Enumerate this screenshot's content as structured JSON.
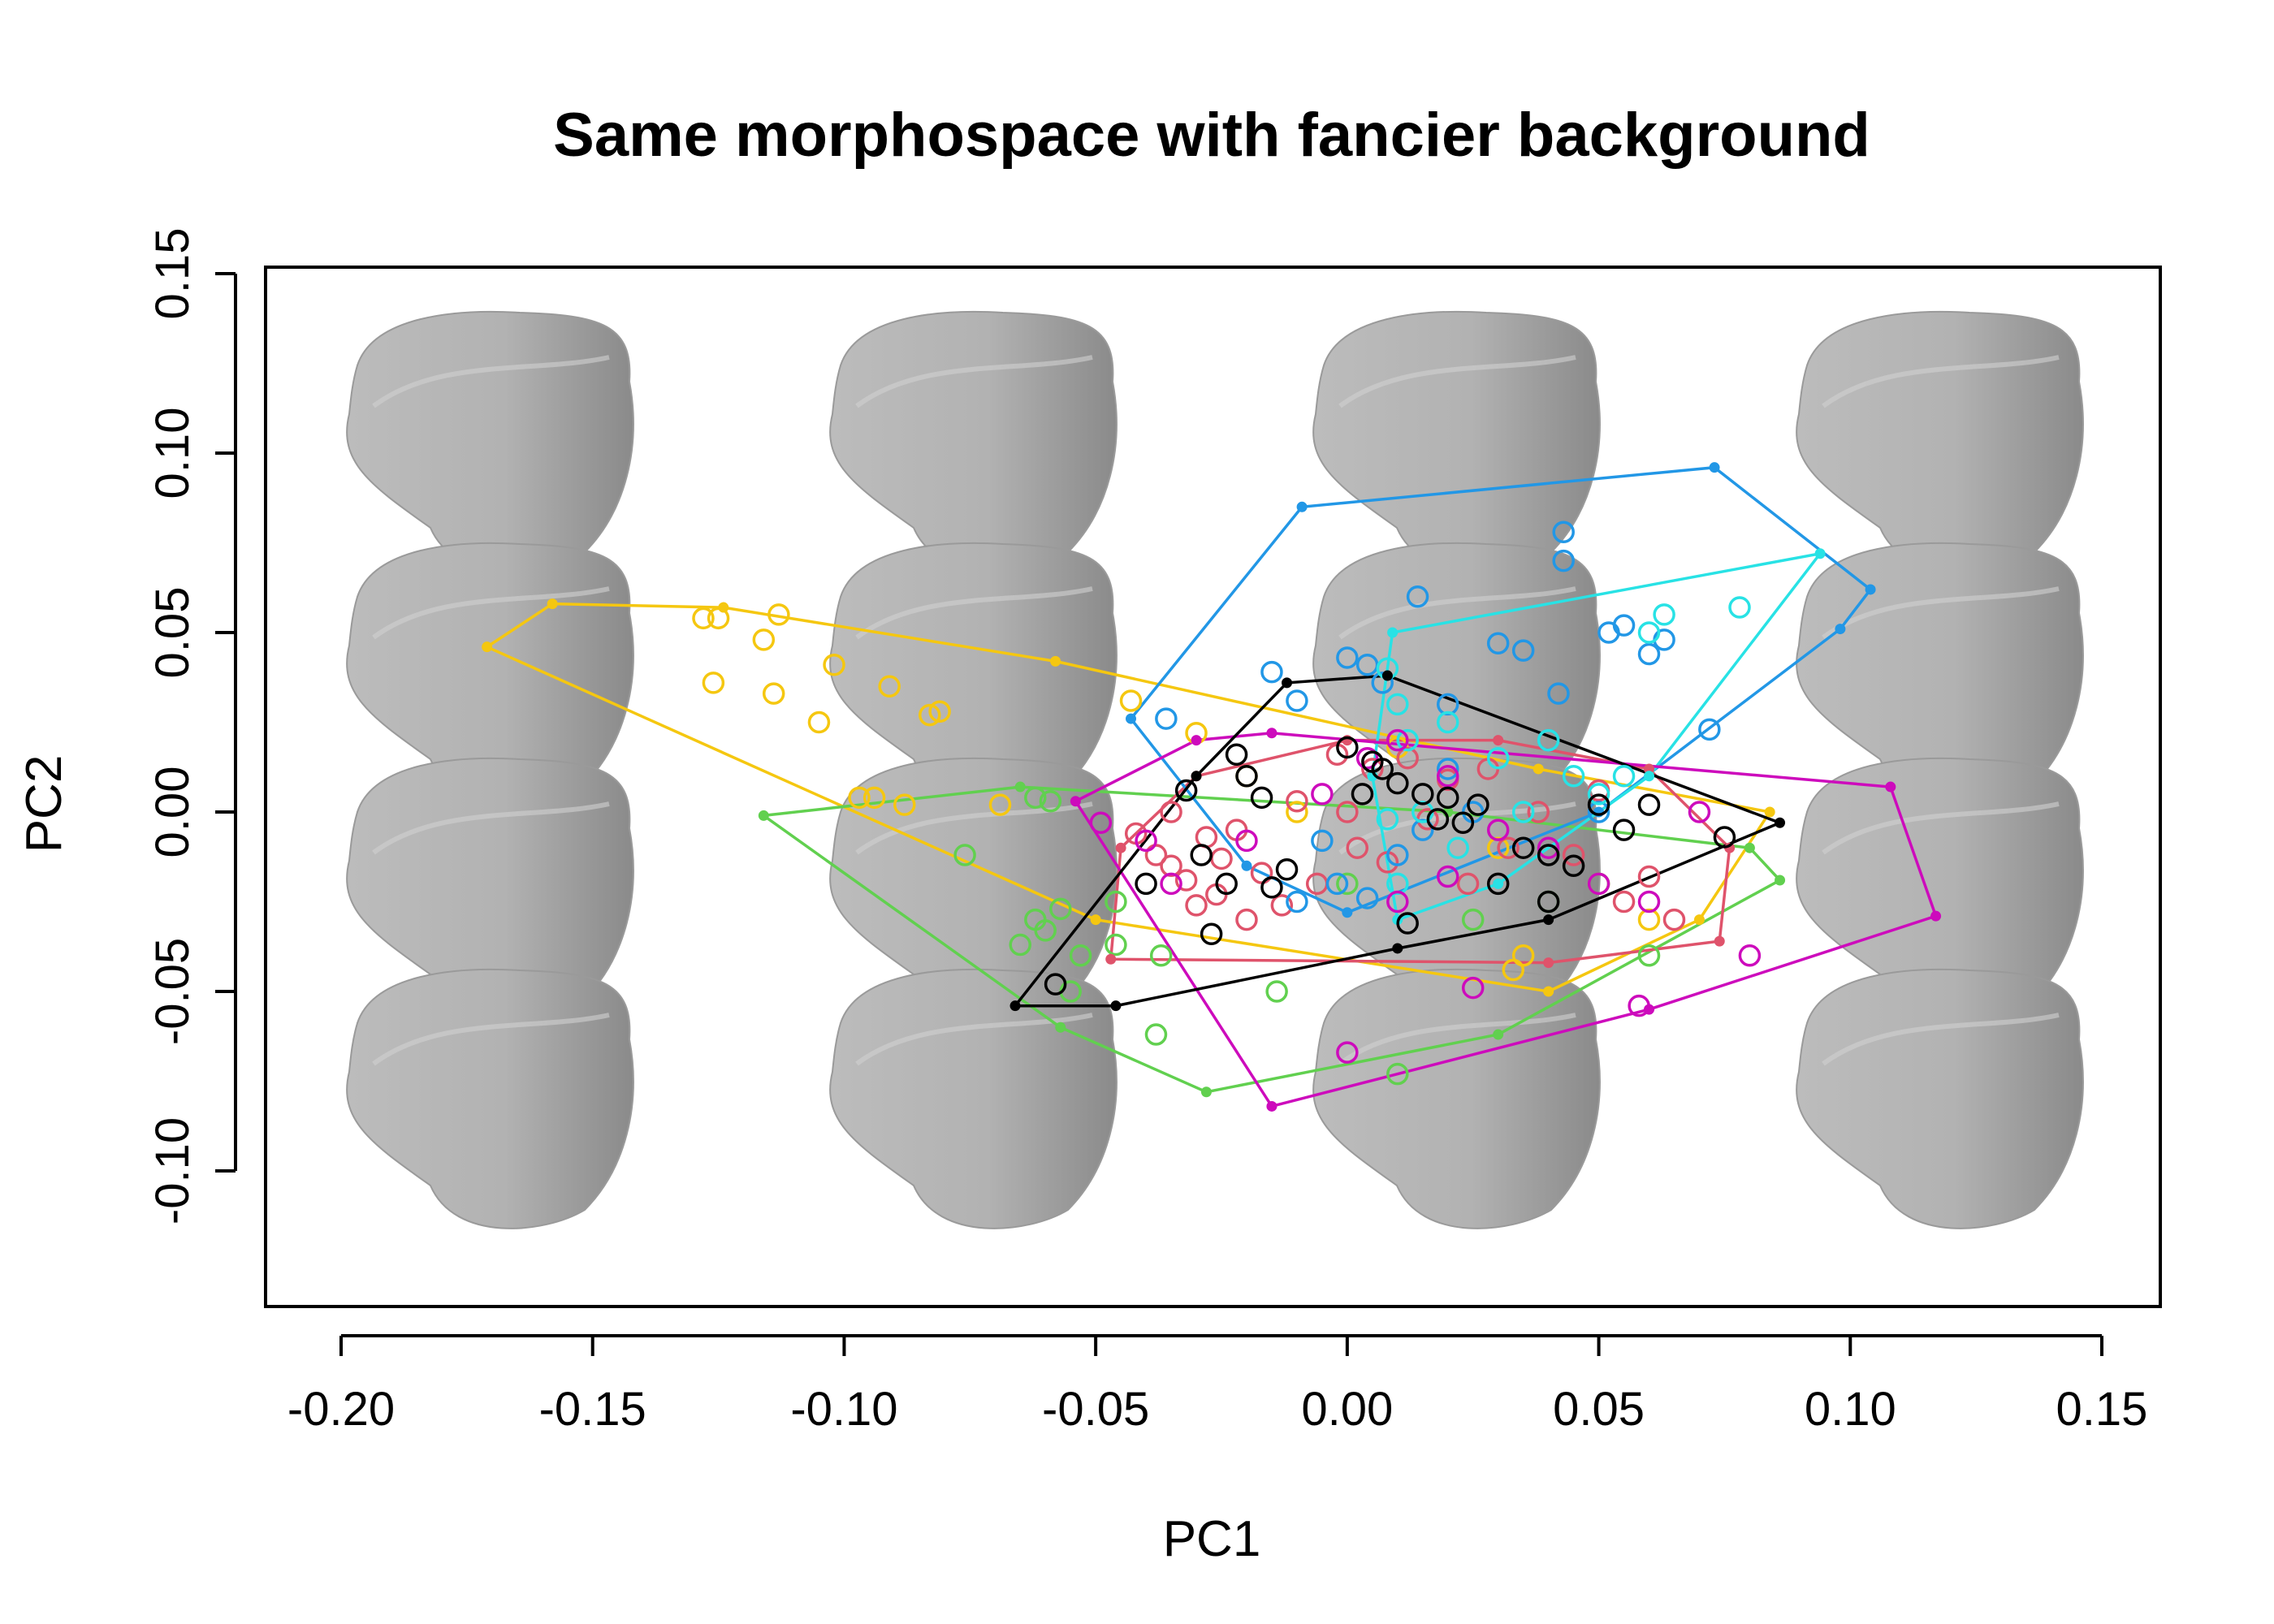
{
  "chart_data": {
    "type": "scatter",
    "title": "Same morphospace with fancier background",
    "xlabel": "PC1",
    "ylabel": "PC2",
    "xlim": [
      -0.215,
      0.16
    ],
    "ylim": [
      -0.138,
      0.151
    ],
    "x_ticks": [
      "-0.20",
      "-0.15",
      "-0.10",
      "-0.05",
      "0.00",
      "0.05",
      "0.10",
      "0.15"
    ],
    "y_ticks": [
      "-0.10",
      "-0.05",
      "0.00",
      "0.05",
      "0.10",
      "0.15"
    ],
    "background": "tooth shape grid (4 columns x 4 rows)",
    "background_colors": {
      "tooth_fill": "#b4b4b4",
      "tooth_shade": "#8c8c8c"
    },
    "series": [
      {
        "color": "#F5C710",
        "hull": [
          [
            -0.171,
            0.046
          ],
          [
            -0.158,
            0.058
          ],
          [
            -0.124,
            0.057
          ],
          [
            -0.058,
            0.042
          ],
          [
            0.038,
            0.012
          ],
          [
            0.084,
            0.0
          ],
          [
            0.07,
            -0.03
          ],
          [
            0.04,
            -0.05
          ],
          [
            -0.05,
            -0.03
          ],
          [
            -0.171,
            0.046
          ]
        ],
        "points": [
          [
            -0.128,
            0.054
          ],
          [
            -0.125,
            0.054
          ],
          [
            -0.116,
            0.048
          ],
          [
            -0.113,
            0.055
          ],
          [
            -0.102,
            0.041
          ],
          [
            -0.126,
            0.036
          ],
          [
            -0.114,
            0.033
          ],
          [
            -0.105,
            0.025
          ],
          [
            -0.091,
            0.035
          ],
          [
            -0.083,
            0.027
          ],
          [
            -0.081,
            0.028
          ],
          [
            -0.097,
            0.004
          ],
          [
            -0.094,
            0.004
          ],
          [
            -0.088,
            0.002
          ],
          [
            -0.069,
            0.002
          ],
          [
            -0.043,
            0.031
          ],
          [
            -0.03,
            0.022
          ],
          [
            -0.02,
            0.01
          ],
          [
            -0.01,
            0.0
          ],
          [
            0.01,
            0.018
          ],
          [
            0.03,
            -0.01
          ],
          [
            0.05,
            -0.02
          ],
          [
            0.06,
            -0.03
          ],
          [
            0.033,
            -0.044
          ],
          [
            0.035,
            -0.04
          ]
        ]
      },
      {
        "color": "#61D04F",
        "hull": [
          [
            -0.116,
            -0.001
          ],
          [
            -0.065,
            0.007
          ],
          [
            0.02,
            0.0
          ],
          [
            0.08,
            -0.01
          ],
          [
            0.086,
            -0.019
          ],
          [
            0.03,
            -0.062
          ],
          [
            -0.028,
            -0.078
          ],
          [
            -0.057,
            -0.06
          ],
          [
            -0.116,
            -0.001
          ]
        ],
        "points": [
          [
            -0.076,
            -0.012
          ],
          [
            -0.062,
            0.004
          ],
          [
            -0.059,
            0.003
          ],
          [
            -0.065,
            -0.037
          ],
          [
            -0.062,
            -0.03
          ],
          [
            -0.06,
            -0.033
          ],
          [
            -0.057,
            -0.027
          ],
          [
            -0.053,
            -0.04
          ],
          [
            -0.055,
            -0.05
          ],
          [
            -0.046,
            -0.025
          ],
          [
            -0.046,
            -0.037
          ],
          [
            -0.037,
            -0.04
          ],
          [
            -0.038,
            -0.062
          ],
          [
            -0.014,
            -0.05
          ],
          [
            0.0,
            -0.02
          ],
          [
            0.01,
            -0.073
          ],
          [
            0.025,
            -0.03
          ],
          [
            0.04,
            -0.025
          ],
          [
            0.05,
            -0.02
          ],
          [
            0.06,
            -0.04
          ]
        ]
      },
      {
        "color": "#DF536B",
        "hull": [
          [
            -0.045,
            -0.01
          ],
          [
            -0.03,
            0.01
          ],
          [
            0.0,
            0.02
          ],
          [
            0.03,
            0.02
          ],
          [
            0.06,
            0.012
          ],
          [
            0.076,
            -0.01
          ],
          [
            0.074,
            -0.036
          ],
          [
            0.04,
            -0.042
          ],
          [
            -0.047,
            -0.041
          ],
          [
            -0.045,
            -0.01
          ]
        ],
        "points": [
          [
            -0.042,
            -0.006
          ],
          [
            -0.038,
            -0.012
          ],
          [
            -0.035,
            0.0
          ],
          [
            -0.032,
            -0.019
          ],
          [
            -0.028,
            -0.007
          ],
          [
            -0.025,
            -0.013
          ],
          [
            -0.022,
            -0.005
          ],
          [
            -0.017,
            -0.017
          ],
          [
            -0.013,
            -0.026
          ],
          [
            -0.01,
            0.003
          ],
          [
            -0.006,
            -0.02
          ],
          [
            -0.002,
            0.016
          ],
          [
            0.002,
            -0.01
          ],
          [
            0.005,
            0.012
          ],
          [
            0.008,
            -0.014
          ],
          [
            0.012,
            0.015
          ],
          [
            0.016,
            -0.002
          ],
          [
            0.02,
            0.009
          ],
          [
            0.024,
            -0.02
          ],
          [
            0.028,
            0.012
          ],
          [
            0.032,
            -0.01
          ],
          [
            0.038,
            0.0
          ],
          [
            0.045,
            -0.012
          ],
          [
            0.05,
            0.006
          ],
          [
            0.055,
            -0.025
          ],
          [
            0.06,
            -0.018
          ],
          [
            0.065,
            -0.03
          ],
          [
            -0.03,
            -0.026
          ],
          [
            -0.035,
            -0.015
          ],
          [
            -0.026,
            -0.023
          ],
          [
            -0.02,
            -0.03
          ],
          [
            0.0,
            0.0
          ]
        ]
      },
      {
        "color": "#2297E6",
        "hull": [
          [
            -0.043,
            0.026
          ],
          [
            -0.009,
            0.085
          ],
          [
            0.073,
            0.096
          ],
          [
            0.104,
            0.062
          ],
          [
            0.098,
            0.051
          ],
          [
            0.05,
            0.0
          ],
          [
            0.0,
            -0.028
          ],
          [
            -0.02,
            -0.015
          ],
          [
            -0.043,
            0.026
          ]
        ],
        "points": [
          [
            -0.036,
            0.026
          ],
          [
            -0.015,
            0.039
          ],
          [
            -0.01,
            0.031
          ],
          [
            0.0,
            0.043
          ],
          [
            0.004,
            0.041
          ],
          [
            0.007,
            0.036
          ],
          [
            0.014,
            0.06
          ],
          [
            0.02,
            0.03
          ],
          [
            0.03,
            0.047
          ],
          [
            0.035,
            0.045
          ],
          [
            0.04,
            0.02
          ],
          [
            0.042,
            0.033
          ],
          [
            0.043,
            0.078
          ],
          [
            0.043,
            0.07
          ],
          [
            0.05,
            0.0
          ],
          [
            0.052,
            0.05
          ],
          [
            0.055,
            0.052
          ],
          [
            0.06,
            0.044
          ],
          [
            0.063,
            0.048
          ],
          [
            0.072,
            0.023
          ],
          [
            -0.005,
            -0.008
          ],
          [
            -0.002,
            -0.02
          ],
          [
            0.004,
            -0.024
          ],
          [
            0.01,
            -0.012
          ],
          [
            0.015,
            -0.005
          ],
          [
            0.02,
            0.012
          ],
          [
            0.025,
            0.0
          ],
          [
            -0.01,
            -0.025
          ]
        ]
      },
      {
        "color": "#28E2E5",
        "hull": [
          [
            0.009,
            0.05
          ],
          [
            0.094,
            0.072
          ],
          [
            0.06,
            0.01
          ],
          [
            0.03,
            -0.02
          ],
          [
            0.01,
            -0.03
          ],
          [
            0.005,
            0.01
          ],
          [
            0.009,
            0.05
          ]
        ],
        "points": [
          [
            0.008,
            0.04
          ],
          [
            0.01,
            0.03
          ],
          [
            0.012,
            0.02
          ],
          [
            0.015,
            0.0
          ],
          [
            0.008,
            -0.002
          ],
          [
            0.02,
            0.025
          ],
          [
            0.022,
            -0.01
          ],
          [
            0.03,
            0.015
          ],
          [
            0.035,
            0.0
          ],
          [
            0.04,
            0.02
          ],
          [
            0.045,
            0.01
          ],
          [
            0.05,
            0.005
          ],
          [
            0.055,
            0.01
          ],
          [
            0.06,
            0.05
          ],
          [
            0.063,
            0.055
          ],
          [
            0.078,
            0.057
          ],
          [
            0.01,
            -0.02
          ]
        ]
      },
      {
        "color": "#CD0BBC",
        "hull": [
          [
            -0.054,
            0.003
          ],
          [
            -0.03,
            0.02
          ],
          [
            -0.015,
            0.022
          ],
          [
            0.108,
            0.007
          ],
          [
            0.117,
            -0.029
          ],
          [
            0.06,
            -0.055
          ],
          [
            -0.015,
            -0.082
          ],
          [
            -0.054,
            0.003
          ]
        ],
        "points": [
          [
            -0.049,
            -0.003
          ],
          [
            -0.04,
            -0.008
          ],
          [
            -0.035,
            -0.02
          ],
          [
            -0.02,
            -0.008
          ],
          [
            -0.005,
            0.005
          ],
          [
            0.004,
            0.015
          ],
          [
            0.01,
            0.02
          ],
          [
            0.02,
            0.01
          ],
          [
            0.03,
            -0.005
          ],
          [
            0.04,
            -0.01
          ],
          [
            0.05,
            -0.02
          ],
          [
            0.06,
            -0.025
          ],
          [
            0.07,
            0.0
          ],
          [
            0.0,
            -0.067
          ],
          [
            0.025,
            -0.049
          ],
          [
            0.058,
            -0.054
          ],
          [
            0.08,
            -0.04
          ],
          [
            0.01,
            -0.025
          ],
          [
            0.02,
            -0.018
          ]
        ]
      },
      {
        "color": "#000000",
        "hull": [
          [
            -0.066,
            -0.054
          ],
          [
            -0.03,
            0.01
          ],
          [
            -0.012,
            0.036
          ],
          [
            0.008,
            0.038
          ],
          [
            0.086,
            -0.003
          ],
          [
            0.04,
            -0.03
          ],
          [
            0.01,
            -0.038
          ],
          [
            -0.046,
            -0.054
          ],
          [
            -0.066,
            -0.054
          ]
        ],
        "points": [
          [
            -0.058,
            -0.048
          ],
          [
            -0.04,
            -0.02
          ],
          [
            -0.032,
            0.006
          ],
          [
            -0.029,
            -0.012
          ],
          [
            -0.027,
            -0.034
          ],
          [
            -0.024,
            -0.02
          ],
          [
            -0.022,
            0.016
          ],
          [
            -0.02,
            0.01
          ],
          [
            -0.017,
            0.004
          ],
          [
            -0.015,
            -0.021
          ],
          [
            -0.012,
            -0.016
          ],
          [
            0.0,
            0.018
          ],
          [
            0.003,
            0.005
          ],
          [
            0.005,
            0.014
          ],
          [
            0.007,
            0.012
          ],
          [
            0.01,
            0.008
          ],
          [
            0.012,
            -0.031
          ],
          [
            0.015,
            0.005
          ],
          [
            0.018,
            -0.002
          ],
          [
            0.02,
            0.004
          ],
          [
            0.023,
            -0.003
          ],
          [
            0.026,
            0.002
          ],
          [
            0.035,
            -0.01
          ],
          [
            0.04,
            -0.012
          ],
          [
            0.045,
            -0.015
          ],
          [
            0.05,
            0.002
          ],
          [
            0.055,
            -0.005
          ],
          [
            0.06,
            0.002
          ],
          [
            0.075,
            -0.007
          ],
          [
            0.03,
            -0.02
          ],
          [
            0.04,
            -0.025
          ]
        ]
      }
    ]
  }
}
